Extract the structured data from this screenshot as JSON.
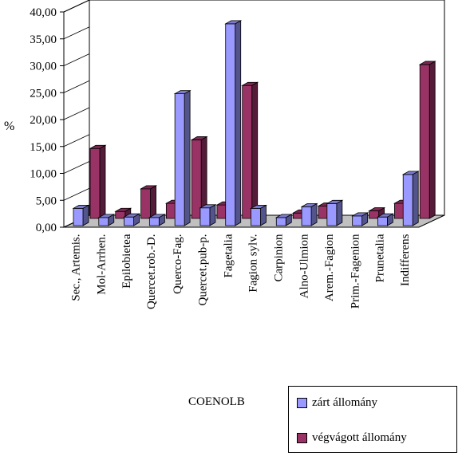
{
  "chart_data": {
    "type": "bar",
    "ylabel": "%",
    "xlabel": "COENOLB",
    "ylim": [
      0,
      40
    ],
    "yticks": [
      "0,00",
      "5,00",
      "10,00",
      "15,00",
      "20,00",
      "25,00",
      "30,00",
      "35,00",
      "40,00"
    ],
    "categories": [
      "Sec., Artemis.",
      "Mol-Arrhen.",
      "Epilobietea",
      "Quercet.rob.-D.",
      "Querco-Fag.",
      "Quercet.pub-p.",
      "Fagetalia",
      "Fagion sylv.",
      "Carpinion",
      "Alno-Ulmion",
      "Arem.-Fagion",
      "Prim.-Fagenion",
      "Prunetalia",
      "Indifferens"
    ],
    "series": [
      {
        "name": "zárt állomány",
        "color": "#9999ff",
        "values": [
          3.2,
          1.5,
          1.6,
          1.5,
          24.5,
          3.3,
          37.5,
          3.2,
          1.5,
          3.5,
          4.1,
          1.8,
          1.6,
          9.5
        ]
      },
      {
        "name": "végvágott állomány",
        "color": "#993366",
        "values": [
          13.0,
          1.3,
          5.5,
          2.8,
          14.6,
          2.5,
          24.7,
          0,
          1.0,
          2.3,
          0,
          1.4,
          2.8,
          28.6
        ]
      }
    ],
    "legend_position": "bottom-right",
    "grid": false
  }
}
